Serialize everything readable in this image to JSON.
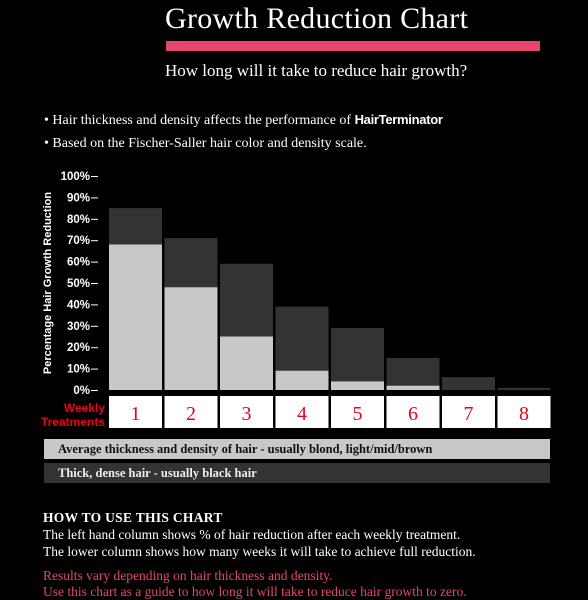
{
  "header": {
    "title": "Growth Reduction Chart",
    "subtitle": "How long will it take to reduce hair growth?"
  },
  "bullets": {
    "line1_prefix": "• Hair thickness and density affects the performance of ",
    "line1_brand": "HairTerminator",
    "line2": "• Based on the Fischer-Saller hair color and density scale."
  },
  "chart_data": {
    "type": "bar",
    "categories": [
      "1",
      "2",
      "3",
      "4",
      "5",
      "6",
      "7",
      "8"
    ],
    "series": [
      {
        "name": "Thick, dense hair - usually black hair",
        "values": [
          85,
          71,
          59,
          39,
          29,
          15,
          6,
          1
        ]
      },
      {
        "name": "Average thickness and density of hair - usually blond, light/mid/brown",
        "values": [
          68,
          48,
          25,
          9,
          4,
          2,
          0,
          0
        ]
      }
    ],
    "ylabel": "Percentage Hair Growth Reduction",
    "xlabel": "Weekly Treatments",
    "xlabel_lines": [
      "Weekly",
      "Treatments"
    ],
    "yticks": [
      "0%",
      "10%",
      "20%",
      "30%",
      "40%",
      "50%",
      "60%",
      "70%",
      "80%",
      "90%",
      "100%"
    ],
    "ylim": [
      0,
      100
    ],
    "legend_position": "bottom",
    "colors": {
      "light": "#c8c8c8",
      "dark": "#333333",
      "accent": "#e8001c"
    }
  },
  "howto": {
    "heading": "HOW TO USE THIS CHART",
    "line1": "The left hand column shows % of hair reduction after each weekly treatment.",
    "line2": "The lower column shows how many weeks it will take to achieve full reduction."
  },
  "note": {
    "line1": "Results vary depending on hair thickness and density.",
    "line2": "Use this chart as a guide to how long it will take to reduce hair growth to zero."
  },
  "colors": {
    "background": "#000000",
    "accent_pink": "#e8456b",
    "accent_red": "#e8001c"
  }
}
